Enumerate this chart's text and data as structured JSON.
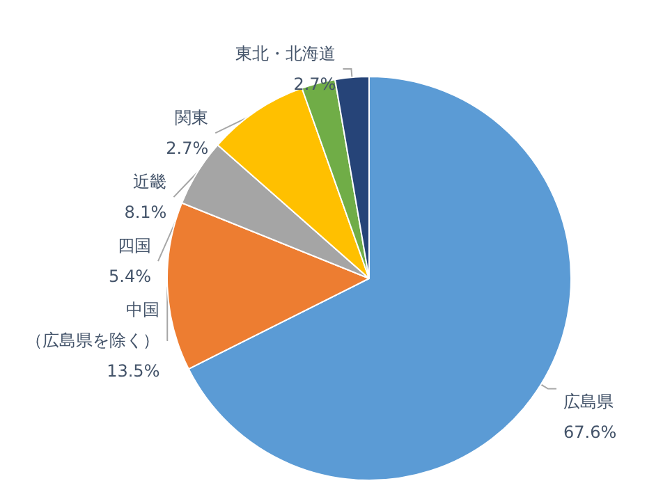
{
  "chart_data": {
    "type": "pie",
    "categories": [
      "広島県",
      "中国（広島県を除く）",
      "四国",
      "近畿",
      "関東",
      "東北・北海道"
    ],
    "values": [
      67.6,
      13.5,
      5.4,
      8.1,
      2.7,
      2.7
    ],
    "value_labels": [
      "67.6%",
      "13.5%",
      "5.4%",
      "8.1%",
      "2.7%",
      "2.7%"
    ],
    "colors": [
      "#5b9bd5",
      "#ed7d31",
      "#a5a5a5",
      "#ffc000",
      "#70ad47",
      "#264478"
    ],
    "legend": false
  }
}
